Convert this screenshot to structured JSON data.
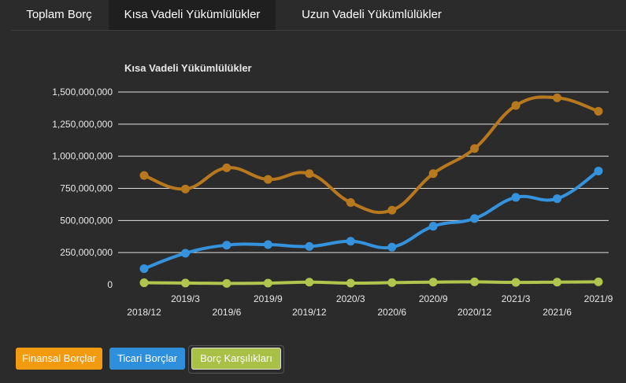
{
  "tabs": [
    {
      "label": "Toplam Borç"
    },
    {
      "label": "Kısa Vadeli Yükümlülükler"
    },
    {
      "label": "Uzun Vadeli Yükümlülükler"
    }
  ],
  "colors": {
    "finansal": "#b8781e",
    "ticari": "#3593dd",
    "karsilik": "#b0c54e",
    "grid": "#e0e0e0",
    "text": "#ffffff",
    "tick": "#e8e8e8"
  },
  "legend": [
    {
      "label": "Finansal Borçlar"
    },
    {
      "label": "Ticari Borçlar"
    },
    {
      "label": "Borç Karşılıkları"
    }
  ],
  "chart_data": {
    "type": "line",
    "title": "Kısa Vadeli Yükümlülükler",
    "x": [
      "2018/12",
      "2019/3",
      "2019/6",
      "2019/9",
      "2019/12",
      "2020/3",
      "2020/6",
      "2020/9",
      "2020/12",
      "2021/3",
      "2021/6",
      "2021/9"
    ],
    "yticks": [
      "0",
      "250,000,000",
      "500,000,000",
      "750,000,000",
      "1,000,000,000",
      "1,250,000,000",
      "1,500,000,000"
    ],
    "ylim": [
      0,
      1500000000
    ],
    "grid": true,
    "legend_position": "bottom-left",
    "series": [
      {
        "name": "Finansal Borçlar",
        "values": [
          850000000,
          745000000,
          910000000,
          820000000,
          865000000,
          640000000,
          580000000,
          865000000,
          1060000000,
          1395000000,
          1455000000,
          1350000000
        ]
      },
      {
        "name": "Ticari Borçlar",
        "values": [
          125000000,
          245000000,
          308000000,
          312000000,
          298000000,
          338000000,
          292000000,
          455000000,
          515000000,
          680000000,
          670000000,
          885000000
        ]
      },
      {
        "name": "Borç Karşılıkları",
        "values": [
          15000000,
          13000000,
          10000000,
          12000000,
          20000000,
          12000000,
          16000000,
          20000000,
          22000000,
          18000000,
          20000000,
          22000000
        ]
      }
    ]
  }
}
